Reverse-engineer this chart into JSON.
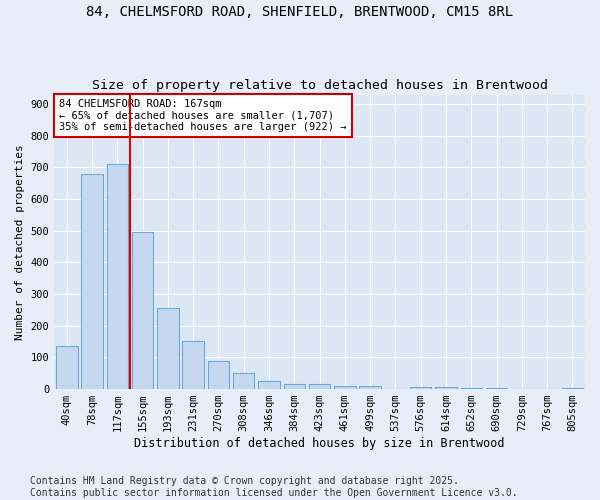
{
  "title1": "84, CHELMSFORD ROAD, SHENFIELD, BRENTWOOD, CM15 8RL",
  "title2": "Size of property relative to detached houses in Brentwood",
  "xlabel": "Distribution of detached houses by size in Brentwood",
  "ylabel": "Number of detached properties",
  "categories": [
    "40sqm",
    "78sqm",
    "117sqm",
    "155sqm",
    "193sqm",
    "231sqm",
    "270sqm",
    "308sqm",
    "346sqm",
    "384sqm",
    "423sqm",
    "461sqm",
    "499sqm",
    "537sqm",
    "576sqm",
    "614sqm",
    "652sqm",
    "690sqm",
    "729sqm",
    "767sqm",
    "805sqm"
  ],
  "values": [
    135,
    678,
    710,
    495,
    255,
    152,
    88,
    50,
    26,
    17,
    17,
    9,
    10,
    1,
    7,
    5,
    2,
    2,
    1,
    1,
    2
  ],
  "bar_color": "#c5d8f0",
  "bar_edge_color": "#6aaad4",
  "bar_edge_width": 0.8,
  "vline_color": "#dd0000",
  "vline_x": 2.5,
  "annotation_text": "84 CHELMSFORD ROAD: 167sqm\n← 65% of detached houses are smaller (1,707)\n35% of semi-detached houses are larger (922) →",
  "annotation_box_edgecolor": "#cc0000",
  "ylim": [
    0,
    930
  ],
  "yticks": [
    0,
    100,
    200,
    300,
    400,
    500,
    600,
    700,
    800,
    900
  ],
  "bg_color": "#e8eef7",
  "plot_bg_color": "#dce7f5",
  "grid_color": "#ffffff",
  "footer": "Contains HM Land Registry data © Crown copyright and database right 2025.\nContains public sector information licensed under the Open Government Licence v3.0.",
  "title_fontsize": 10,
  "subtitle_fontsize": 9.5,
  "tick_fontsize": 7.5,
  "label_fontsize": 8.5,
  "ylabel_fontsize": 8,
  "footer_fontsize": 7,
  "annotation_fontsize": 7.5
}
